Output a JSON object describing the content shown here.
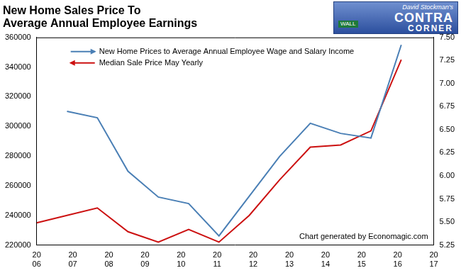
{
  "chart_data": {
    "type": "line",
    "title": "New Home Sales Price To\nAverage Annual Employee Earnings",
    "logo": [
      "David Stockman's",
      "CONTRA",
      "CORNER",
      "WALL"
    ],
    "annotations": [
      "Chart generated by Economagic.com"
    ],
    "x": [
      2006.0,
      2006.84,
      2007.68,
      2008.53,
      2009.37,
      2010.21,
      2011.05,
      2011.89,
      2012.73,
      2013.58,
      2014.42,
      2015.26,
      2016.1
    ],
    "xlim": [
      2006,
      2017
    ],
    "xticks": [
      {
        "value": 2006,
        "label": "20\n06"
      },
      {
        "value": 2007,
        "label": "20\n07"
      },
      {
        "value": 2008,
        "label": "20\n08"
      },
      {
        "value": 2009,
        "label": "20\n09"
      },
      {
        "value": 2010,
        "label": "20\n10"
      },
      {
        "value": 2011,
        "label": "20\n11"
      },
      {
        "value": 2012,
        "label": "20\n12"
      },
      {
        "value": 2013,
        "label": "20\n13"
      },
      {
        "value": 2014,
        "label": "20\n14"
      },
      {
        "value": 2015,
        "label": "20\n15"
      },
      {
        "value": 2016,
        "label": "20\n16"
      },
      {
        "value": 2017,
        "label": "20\n17"
      }
    ],
    "ylim": [
      220000,
      360000
    ],
    "yticks": [
      220000,
      240000,
      260000,
      280000,
      300000,
      320000,
      340000,
      360000
    ],
    "y2lim": [
      5.25,
      7.5
    ],
    "y2ticks": [
      {
        "value": 5.25,
        "label": "5.25"
      },
      {
        "value": 5.5,
        "label": "5.50"
      },
      {
        "value": 5.75,
        "label": "5.75"
      },
      {
        "value": 6,
        "label": "6.00"
      },
      {
        "value": 6.25,
        "label": "6.25"
      },
      {
        "value": 6.5,
        "label": "6.50"
      },
      {
        "value": 6.75,
        "label": "6.75"
      },
      {
        "value": 7,
        "label": "7.00"
      },
      {
        "value": 7.25,
        "label": "7.25"
      },
      {
        "value": 7.5,
        "label": "7.50"
      }
    ],
    "series": [
      {
        "name": "New Home Prices to Average Annual Employee Wage and Salary Income",
        "color": "#4a7fb5",
        "axis": "y2",
        "values": [
          null,
          6.7,
          6.63,
          6.05,
          5.77,
          5.7,
          5.35,
          5.78,
          6.21,
          6.57,
          6.46,
          6.41,
          7.42
        ]
      },
      {
        "name": "Median Sale Price May Yearly",
        "color": "#cc1111",
        "values": [
          235000,
          240000,
          245000,
          229000,
          222000,
          230500,
          222000,
          240000,
          264000,
          286000,
          287500,
          297000,
          345000
        ]
      }
    ],
    "legend": "upper left",
    "grid": false
  }
}
